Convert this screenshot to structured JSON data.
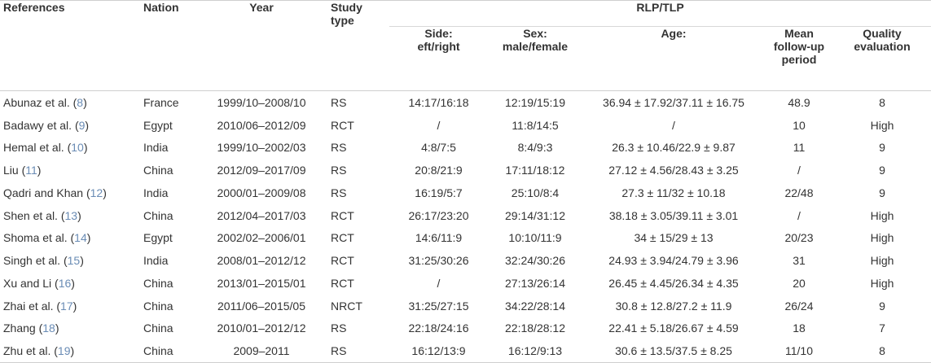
{
  "headers": {
    "references": "References",
    "nation": "Nation",
    "year": "Year",
    "study_type_line1": "Study",
    "study_type_line2": "type",
    "group": "RLP/TLP",
    "side_line1": "Side:",
    "side_line2": "eft/right",
    "sex_line1": "Sex:",
    "sex_line2": "male/female",
    "age": "Age:",
    "followup_line1": "Mean",
    "followup_line2": "follow-up",
    "followup_line3": "period",
    "quality_line1": "Quality",
    "quality_line2": "evaluation"
  },
  "rows": [
    {
      "ref_name": "Abunaz et al. (",
      "ref_num": "8",
      "ref_close": ")",
      "nation": "France",
      "year": "1999/10–2008/10",
      "study_type": "RS",
      "side": "14:17/16:18",
      "sex": "12:19/15:19",
      "age": "36.94 ± 17.92/37.11 ± 16.75",
      "followup": "48.9",
      "quality": "8"
    },
    {
      "ref_name": "Badawy et al. (",
      "ref_num": "9",
      "ref_close": ")",
      "nation": "Egypt",
      "year": "2010/06–2012/09",
      "study_type": "RCT",
      "side": "/",
      "sex": "11:8/14:5",
      "age": "/",
      "followup": "10",
      "quality": "High"
    },
    {
      "ref_name": "Hemal et al. (",
      "ref_num": "10",
      "ref_close": ")",
      "nation": "India",
      "year": "1999/10–2002/03",
      "study_type": "RS",
      "side": "4:8/7:5",
      "sex": "8:4/9:3",
      "age": "26.3 ± 10.46/22.9 ± 9.87",
      "followup": "11",
      "quality": "9"
    },
    {
      "ref_name": "Liu (",
      "ref_num": "11",
      "ref_close": ")",
      "nation": "China",
      "year": "2012/09–2017/09",
      "study_type": "RS",
      "side": "20:8/21:9",
      "sex": "17:11/18:12",
      "age": "27.12 ± 4.56/28.43 ± 3.25",
      "followup": "/",
      "quality": "9"
    },
    {
      "ref_name": "Qadri and Khan (",
      "ref_num": "12",
      "ref_close": ")",
      "nation": "India",
      "year": "2000/01–2009/08",
      "study_type": "RS",
      "side": "16:19/5:7",
      "sex": "25:10/8:4",
      "age": "27.3 ± 11/32 ± 10.18",
      "followup": "22/48",
      "quality": "9"
    },
    {
      "ref_name": "Shen et al. (",
      "ref_num": "13",
      "ref_close": ")",
      "nation": "China",
      "year": "2012/04–2017/03",
      "study_type": "RCT",
      "side": "26:17/23:20",
      "sex": "29:14/31:12",
      "age": "38.18 ± 3.05/39.11 ± 3.01",
      "followup": "/",
      "quality": "High"
    },
    {
      "ref_name": "Shoma et al. (",
      "ref_num": "14",
      "ref_close": ")",
      "nation": "Egypt",
      "year": "2002/02–2006/01",
      "study_type": "RCT",
      "side": "14:6/11:9",
      "sex": "10:10/11:9",
      "age": "34 ± 15/29 ± 13",
      "followup": "20/23",
      "quality": "High"
    },
    {
      "ref_name": "Singh et al. (",
      "ref_num": "15",
      "ref_close": ")",
      "nation": "India",
      "year": "2008/01–2012/12",
      "study_type": "RCT",
      "side": "31:25/30:26",
      "sex": "32:24/30:26",
      "age": "24.93 ± 3.94/24.79 ± 3.96",
      "followup": "31",
      "quality": "High"
    },
    {
      "ref_name": "Xu and Li (",
      "ref_num": "16",
      "ref_close": ")",
      "nation": "China",
      "year": "2013/01–2015/01",
      "study_type": "RCT",
      "side": "/",
      "sex": "27:13/26:14",
      "age": "26.45 ± 4.45/26.34 ± 4.35",
      "followup": "20",
      "quality": "High"
    },
    {
      "ref_name": "Zhai et al. (",
      "ref_num": "17",
      "ref_close": ")",
      "nation": "China",
      "year": "2011/06–2015/05",
      "study_type": "NRCT",
      "side": "31:25/27:15",
      "sex": "34:22/28:14",
      "age": "30.8 ± 12.8/27.2 ± 11.9",
      "followup": "26/24",
      "quality": "9"
    },
    {
      "ref_name": "Zhang (",
      "ref_num": "18",
      "ref_close": ")",
      "nation": "China",
      "year": "2010/01–2012/12",
      "study_type": "RS",
      "side": "22:18/24:16",
      "sex": "22:18/28:12",
      "age": "22.41 ± 5.18/26.67 ± 4.59",
      "followup": "18",
      "quality": "7"
    },
    {
      "ref_name": "Zhu et al. (",
      "ref_num": "19",
      "ref_close": ")",
      "nation": "China",
      "year": "2009–2011",
      "study_type": "RS",
      "side": "16:12/13:9",
      "sex": "16:12/9:13",
      "age": "30.6 ± 13.5/37.5 ± 8.25",
      "followup": "11/10",
      "quality": "8"
    }
  ]
}
